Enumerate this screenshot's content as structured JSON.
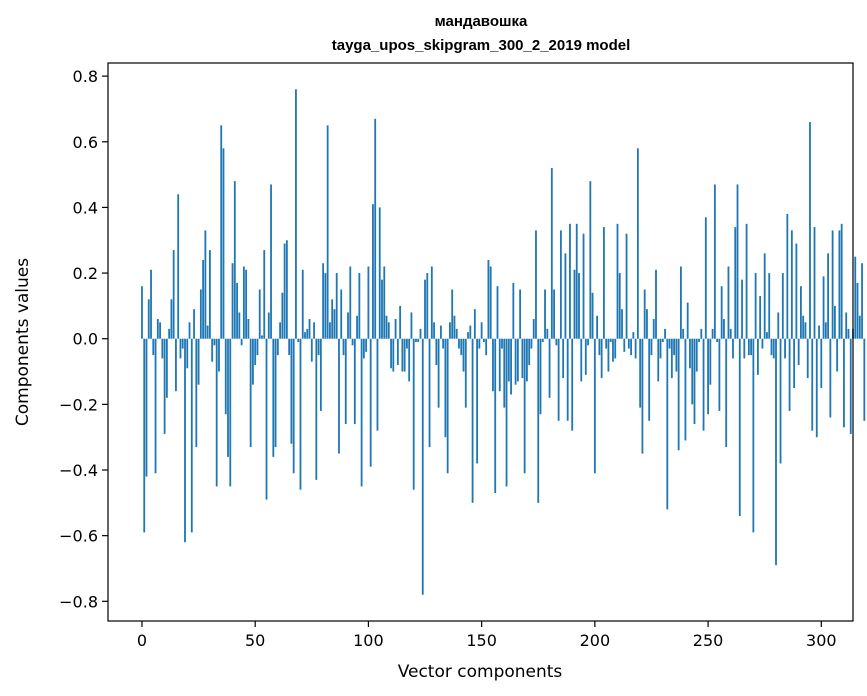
{
  "chart_data": {
    "type": "bar",
    "title": "мандавошка",
    "subtitle": "tayga_upos_skipgram_300_2_2019 model",
    "xlabel": "Vector components",
    "ylabel": "Components values",
    "xlim": [
      -15,
      314
    ],
    "ylim": [
      -0.86,
      0.84
    ],
    "x_ticks": [
      0,
      50,
      100,
      150,
      200,
      250,
      300
    ],
    "x_tick_labels": [
      "0",
      "50",
      "100",
      "150",
      "200",
      "250",
      "300"
    ],
    "y_ticks": [
      0.8,
      0.6,
      0.4,
      0.2,
      0.0,
      -0.2,
      -0.4,
      -0.6,
      -0.8
    ],
    "y_tick_labels": [
      "0.8",
      "0.6",
      "0.4",
      "0.2",
      "0.0",
      "−0.2",
      "−0.4",
      "−0.6",
      "−0.8"
    ],
    "bar_color": "#1f77b4",
    "grid": false,
    "legend": "none",
    "values": [
      0.16,
      -0.59,
      -0.42,
      0.12,
      0.21,
      -0.05,
      -0.41,
      0.06,
      0.05,
      -0.06,
      -0.29,
      -0.18,
      0.03,
      0.12,
      0.27,
      -0.16,
      0.44,
      -0.06,
      -0.03,
      -0.62,
      -0.09,
      0.05,
      -0.59,
      0.09,
      -0.33,
      -0.14,
      0.15,
      0.24,
      0.33,
      0.04,
      0.27,
      -0.07,
      -0.02,
      -0.45,
      -0.1,
      0.65,
      0.58,
      -0.23,
      -0.36,
      -0.45,
      0.23,
      0.48,
      0.17,
      0.08,
      -0.02,
      0.22,
      0.21,
      0.06,
      -0.33,
      -0.14,
      -0.08,
      -0.05,
      0.15,
      0.01,
      0.27,
      -0.49,
      0.08,
      0.47,
      -0.36,
      -0.33,
      -0.05,
      0.05,
      0.14,
      0.29,
      0.3,
      -0.05,
      -0.32,
      -0.41,
      0.76,
      -0.01,
      -0.46,
      0.21,
      0.02,
      0.03,
      0.06,
      -0.07,
      0.05,
      -0.43,
      -0.05,
      -0.22,
      0.23,
      0.2,
      0.65,
      0.05,
      0.12,
      0.09,
      0.2,
      -0.35,
      0.15,
      -0.05,
      -0.26,
      0.08,
      0.22,
      -0.02,
      -0.26,
      0.07,
      0.2,
      -0.45,
      -0.06,
      -0.04,
      0.22,
      -0.39,
      0.41,
      0.67,
      -0.28,
      0.4,
      0.18,
      0.22,
      0.07,
      0.05,
      -0.09,
      -0.1,
      0.06,
      -0.08,
      0.1,
      -0.1,
      -0.1,
      -0.03,
      -0.13,
      0.08,
      -0.46,
      -0.01,
      -0.01,
      0.03,
      -0.78,
      0.18,
      0.2,
      -0.33,
      0.22,
      0.05,
      -0.08,
      -0.21,
      0.04,
      -0.03,
      -0.3,
      -0.41,
      0.05,
      0.15,
      0.07,
      0.03,
      -0.03,
      -0.05,
      -0.1,
      -0.21,
      0.02,
      0.04,
      -0.5,
      0.09,
      -0.38,
      -0.03,
      0.05,
      -0.01,
      -0.05,
      0.24,
      0.22,
      -0.16,
      -0.47,
      0.16,
      -0.16,
      -0.03,
      -0.21,
      -0.45,
      -0.13,
      -0.17,
      0.17,
      -0.14,
      -0.13,
      0.15,
      -0.12,
      -0.41,
      -0.13,
      -0.08,
      -0.03,
      0.06,
      0.33,
      -0.5,
      -0.23,
      -0.01,
      0.15,
      0.03,
      -0.18,
      0.52,
      0.15,
      -0.02,
      -0.25,
      0.33,
      -0.12,
      0.26,
      -0.25,
      0.35,
      -0.28,
      0.21,
      0.35,
      0.2,
      -0.13,
      0.32,
      -0.11,
      -0.02,
      0.48,
      0.14,
      -0.41,
      0.07,
      -0.05,
      -0.12,
      0.34,
      -0.03,
      -0.1,
      -0.01,
      -0.07,
      -0.06,
      0.35,
      0.2,
      0.09,
      -0.04,
      0.32,
      -0.03,
      -0.05,
      0.02,
      -0.06,
      0.58,
      -0.21,
      -0.35,
      0.15,
      0.09,
      -0.25,
      -0.05,
      0.06,
      0.21,
      -0.13,
      -0.06,
      -0.01,
      0.03,
      -0.52,
      -0.03,
      -0.12,
      -0.05,
      -0.1,
      -0.34,
      0.22,
      0.03,
      -0.31,
      0.11,
      -0.09,
      -0.2,
      -0.26,
      -0.1,
      -0.01,
      0.03,
      -0.28,
      0.37,
      -0.23,
      -0.14,
      0.03,
      0.47,
      -0.01,
      -0.22,
      0.16,
      0.06,
      -0.33,
      0.22,
      0.03,
      -0.06,
      0.34,
      0.47,
      -0.54,
      0.18,
      -0.06,
      0.35,
      -0.05,
      -0.05,
      -0.59,
      0.2,
      -0.11,
      0.13,
      -0.03,
      0.26,
      0.02,
      0.2,
      -0.05,
      -0.06,
      -0.69,
      0.08,
      -0.38,
      0.2,
      -0.06,
      0.38,
      -0.22,
      0.33,
      -0.15,
      0.29,
      -0.08,
      0.16,
      0.07,
      0.05,
      -0.12,
      0.66,
      -0.28,
      0.34,
      -0.3,
      0.04,
      -0.15,
      0.19,
      0.05,
      0.26,
      -0.24,
      0.33,
      0.1,
      -0.1,
      0.33,
      0.35,
      -0.27,
      0.08,
      0.03,
      -0.29,
      0.03,
      0.25,
      0.17,
      0.07,
      0.23,
      -0.25
    ]
  }
}
